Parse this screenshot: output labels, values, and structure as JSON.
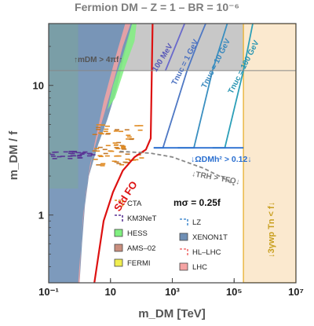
{
  "title": "Fermion DM  –  Z = 1  –  BR = 10⁻⁶",
  "chart_data": {
    "type": "area",
    "title": "Fermion DM  –  Z = 1  –  BR = 10⁻⁶",
    "xlabel": "m_DM   [TeV]",
    "ylabel": "m_DM / f",
    "xscale": "log",
    "yscale": "log",
    "xlim": [
      0.1,
      10000000
    ],
    "ylim": [
      0.3,
      30
    ],
    "x_ticks": [
      0.1,
      10,
      1000,
      100000,
      10000000
    ],
    "x_tick_labels": [
      "10⁻¹",
      "10",
      "10³",
      "10⁵",
      "10⁷"
    ],
    "y_ticks": [
      1,
      10
    ],
    "y_tick_labels": [
      "1",
      "10"
    ],
    "grid": false,
    "regions": [
      {
        "name": "m_DM > 4πf",
        "label": "↑m_DM > 4πf↑",
        "color": "#b5b5b5",
        "points": [
          [
            0.1,
            13
          ],
          [
            10000000,
            13
          ],
          [
            10000000,
            30
          ],
          [
            0.1,
            30
          ]
        ]
      },
      {
        "name": "3γ_wp T_n < f",
        "label": "↓3γ_wp T_n < f↓",
        "color": "#fbe9cf",
        "points": [
          [
            200000,
            0.3
          ],
          [
            10000000,
            0.3
          ],
          [
            10000000,
            30
          ],
          [
            200000,
            30
          ]
        ]
      },
      {
        "name": "XENON1T",
        "label": "XENON1T",
        "color": "#6f8fb5",
        "points": [
          [
            0.1,
            0.3
          ],
          [
            0.1,
            30
          ],
          [
            50,
            30
          ],
          [
            30,
            18
          ],
          [
            15,
            9
          ],
          [
            8,
            5.5
          ],
          [
            4,
            3.5
          ],
          [
            2,
            2
          ],
          [
            1.5,
            1.2
          ],
          [
            1.2,
            0.6
          ],
          [
            1.0,
            0.3
          ]
        ]
      },
      {
        "name": "LHC",
        "label": "LHC",
        "color": "#f5a3a3",
        "points": [
          [
            0.9,
            0.3
          ],
          [
            1.3,
            1.0
          ],
          [
            2.2,
            2.5
          ],
          [
            5,
            5
          ],
          [
            13,
            11
          ],
          [
            25,
            20
          ],
          [
            45,
            30
          ],
          [
            30,
            30
          ],
          [
            15,
            17
          ],
          [
            6,
            7.5
          ],
          [
            3,
            3.5
          ],
          [
            1.6,
            1.5
          ],
          [
            1.1,
            0.6
          ],
          [
            1.0,
            0.3
          ]
        ]
      },
      {
        "name": "HESS",
        "label": "HESS",
        "color": "#80f080",
        "points": [
          [
            8,
            6.5
          ],
          [
            14,
            8
          ],
          [
            30,
            14
          ],
          [
            60,
            22
          ],
          [
            70,
            30
          ],
          [
            50,
            30
          ],
          [
            25,
            17
          ],
          [
            12,
            10
          ]
        ]
      },
      {
        "name": "CTA",
        "label": "CTA",
        "color": "#e08a20"
      },
      {
        "name": "KM3NeT",
        "label": "KM3NeT",
        "color": "#5a3595"
      },
      {
        "name": "AMS-02",
        "label": "AMS–02",
        "color": "#c98e7e"
      },
      {
        "name": "FERMI",
        "label": "FERMI",
        "color": "#f0ee50"
      },
      {
        "name": "LZ",
        "label": "LZ",
        "color": "#4a8fd0"
      },
      {
        "name": "HL-LHC",
        "label": "HL–LHC",
        "color": "#f07070"
      }
    ],
    "lines": [
      {
        "name": "Std FO",
        "label": "Std FO",
        "color": "#dd1111",
        "points": [
          [
            3,
            0.3
          ],
          [
            6,
            0.9
          ],
          [
            12,
            1.5
          ],
          [
            25,
            2.2
          ],
          [
            60,
            2.8
          ],
          [
            140,
            3.2
          ],
          [
            200,
            3.9
          ],
          [
            230,
            30
          ]
        ]
      },
      {
        "name": "T_nuc = 100 MeV",
        "label": "100 MeV",
        "color": "#6a6acc",
        "points": [
          [
            600,
            13
          ],
          [
            2500,
            30
          ]
        ]
      },
      {
        "name": "T_nuc = 1 GeV",
        "label": "T_nuc = 1 GeV",
        "color": "#4e78c4",
        "points": [
          [
            250,
            3.3
          ],
          [
            500,
            3.3
          ],
          [
            3000,
            13
          ],
          [
            7000,
            22
          ],
          [
            12000,
            30
          ]
        ]
      },
      {
        "name": "T_nuc = 10 GeV",
        "label": "T_nuc = 10 GeV",
        "color": "#3a8fc0",
        "points": [
          [
            1500,
            3.3
          ],
          [
            5000,
            3.3
          ],
          [
            20000,
            13
          ],
          [
            60000,
            30
          ]
        ]
      },
      {
        "name": "T_nuc = 100 GeV",
        "label": "T_nuc = 100 GeV",
        "color": "#2b9fb8",
        "points": [
          [
            20000,
            3.3
          ],
          [
            50000,
            3.3
          ],
          [
            200000,
            13
          ],
          [
            400000,
            30
          ]
        ]
      },
      {
        "name": "Ω_DM h² > 0.12",
        "label": "↓Ω_DM h² > 0.12↓",
        "color": "#2a6fd0",
        "points": [
          [
            250,
            3.3
          ],
          [
            200000,
            3.3
          ]
        ]
      },
      {
        "name": "T_RH > T_FO",
        "label": "↓T_RH > T_FO↓",
        "color": "#888888",
        "points": [
          [
            20,
            3.1
          ],
          [
            200,
            3.0
          ],
          [
            1000,
            2.8
          ],
          [
            10000,
            2.3
          ],
          [
            50000,
            1.9
          ],
          [
            100000,
            1.7
          ]
        ]
      }
    ],
    "annotations": [
      {
        "text": "m_σ = 0.25f",
        "x": 1000,
        "y": 0.95
      }
    ],
    "legend_position": "bottom-center"
  },
  "text": {
    "sigma_label": "mσ = 0.25f",
    "std_fo": "Std FO",
    "mdm_4pif": "↑mDM > 4πf↑",
    "omega": "↓ΩDMh² > 0.12↓",
    "trh": "↓TRH > TFO↓",
    "gamma": "↓3γwp Tn < f↓",
    "tnuc_100mev": "100 MeV",
    "tnuc_1gev": "Tnuc = 1 GeV",
    "tnuc_10gev": "Tnuc = 10 GeV",
    "tnuc_100gev": "Tnuc = 100 GeV"
  }
}
